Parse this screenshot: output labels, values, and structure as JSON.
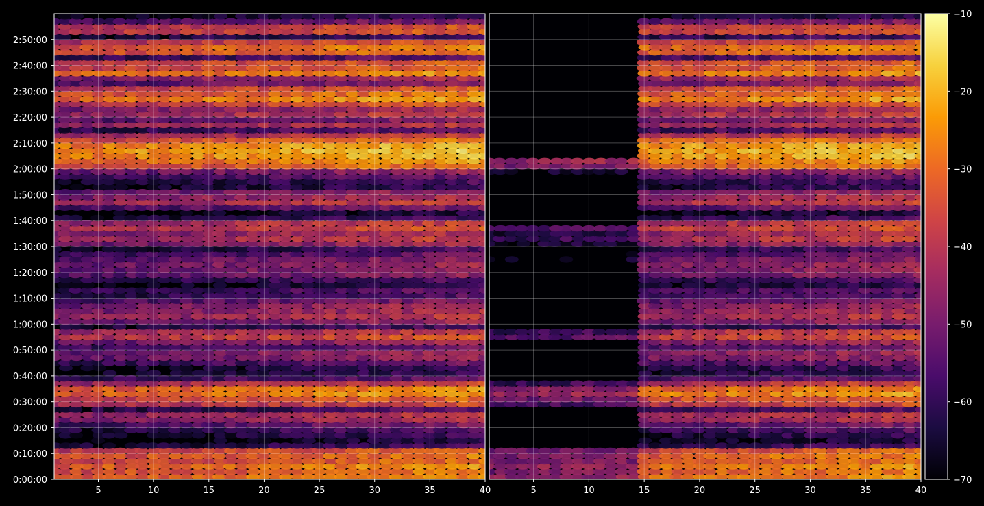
{
  "chart_data": {
    "type": "heatmap",
    "title": "",
    "xlabel": "",
    "ylabel": "",
    "panels": [
      {
        "name": "",
        "xlim": [
          1,
          40
        ],
        "x_ticks": [
          "5",
          "10",
          "15",
          "20",
          "25",
          "30",
          "35",
          "40"
        ],
        "x_tick_values": [
          5,
          10,
          15,
          20,
          25,
          30,
          35,
          40
        ],
        "blank_x_range": null
      },
      {
        "name": "",
        "xlim": [
          1,
          40
        ],
        "x_ticks": [
          "5",
          "10",
          "15",
          "20",
          "25",
          "30",
          "35",
          "40"
        ],
        "x_tick_values": [
          5,
          10,
          15,
          20,
          25,
          30,
          35,
          40
        ],
        "blank_x_range": [
          1,
          14
        ],
        "blank_exceptions_rows_min": [
          0,
          5,
          10,
          30,
          35,
          55,
          85,
          90,
          95,
          115,
          120
        ]
      }
    ],
    "y_axis": {
      "unit": "minutes",
      "ylim": [
        0,
        180
      ],
      "tick_values": [
        0,
        10,
        20,
        30,
        40,
        50,
        60,
        70,
        80,
        90,
        100,
        110,
        120,
        130,
        140,
        150,
        160,
        170
      ],
      "tick_labels": [
        "0:00:00",
        "0:10:00",
        "0:20:00",
        "0:30:00",
        "0:40:00",
        "0:50:00",
        "1:00:00",
        "1:10:00",
        "1:20:00",
        "1:30:00",
        "1:40:00",
        "1:50:00",
        "2:00:00",
        "2:10:00",
        "2:20:00",
        "2:30:00",
        "2:40:00",
        "2:50:00"
      ]
    },
    "grid": true,
    "colorscale": "inferno",
    "colorbar": {
      "range": [
        -70,
        -10
      ],
      "tick_values": [
        -70,
        -60,
        -50,
        -40,
        -30,
        -20,
        -10
      ],
      "tick_labels": [
        "−70",
        "−60",
        "−50",
        "−40",
        "−30",
        "−20",
        "−10"
      ]
    },
    "row_profile": {
      "description": "approximate level (colorbar units) per 2-minute row band, rows from 0 to 180 minutes",
      "row_step_minutes": 2,
      "levels": [
        -28,
        -30,
        -27,
        -32,
        -30,
        -34,
        -60,
        -66,
        -62,
        -58,
        -52,
        -44,
        -42,
        -58,
        -38,
        -33,
        -26,
        -28,
        -40,
        -56,
        -62,
        -62,
        -55,
        -48,
        -47,
        -54,
        -47,
        -36,
        -40,
        -60,
        -48,
        -42,
        -45,
        -46,
        -52,
        -58,
        -56,
        -64,
        -58,
        -50,
        -48,
        -47,
        -50,
        -55,
        -60,
        -46,
        -40,
        -44,
        -36,
        -40,
        -60,
        -66,
        -52,
        -40,
        -44,
        -48,
        -62,
        -60,
        -55,
        -48,
        -30,
        -26,
        -22,
        -20,
        -22,
        -30,
        -40,
        -56,
        -42,
        -50,
        -40,
        -45,
        -35,
        -25,
        -30,
        -34,
        -50,
        -44,
        -26,
        -33,
        -34,
        -56,
        -30,
        -28,
        -36,
        -60,
        -35,
        -36,
        -52,
        -64,
        -60
      ]
    },
    "column_ramp": {
      "description": "levels brighten towards higher x",
      "start_offset": -6,
      "end_offset": 4
    },
    "colorscale_stops": [
      "#000004",
      "#1b0c41",
      "#4a0c6b",
      "#781c6d",
      "#a52c60",
      "#cf4446",
      "#ed6925",
      "#fb9b06",
      "#f7d13d",
      "#fcffa4"
    ]
  }
}
